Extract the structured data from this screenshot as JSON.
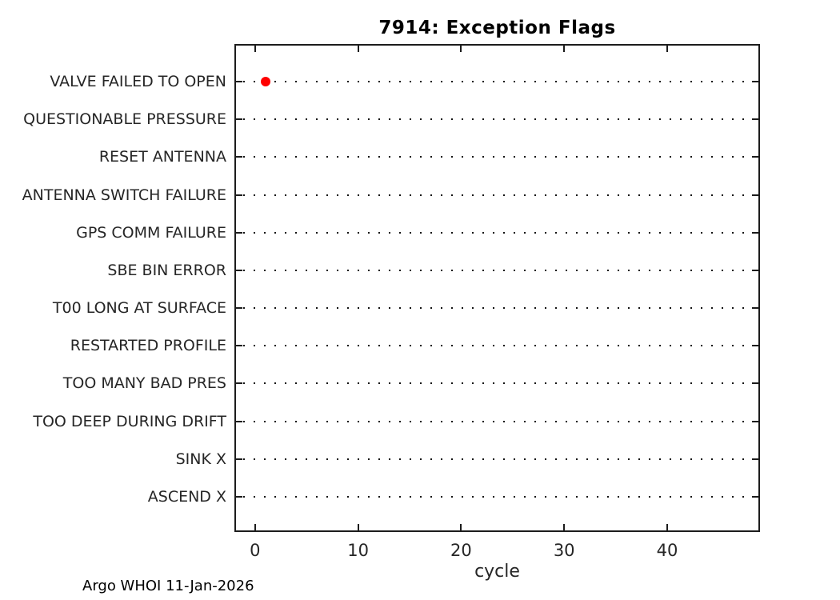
{
  "title": "7914: Exception Flags",
  "footer": "Argo WHOI 11-Jan-2026",
  "chart_data": {
    "type": "scatter",
    "title": "7914: Exception Flags",
    "xlabel": "cycle",
    "ylabel": "",
    "xlim": [
      -2,
      49
    ],
    "x_ticks": [
      0,
      10,
      20,
      30,
      40
    ],
    "x_tick_labels": [
      "0",
      "10",
      "20",
      "30",
      "40"
    ],
    "grid": "dotted horizontal line per category row",
    "legend": null,
    "categories": [
      "VALVE FAILED TO OPEN",
      "QUESTIONABLE PRESSURE",
      "RESET ANTENNA",
      "ANTENNA SWITCH FAILURE",
      "GPS COMM FAILURE",
      "SBE BIN ERROR",
      "T00 LONG AT SURFACE",
      "RESTARTED PROFILE",
      "TOO MANY BAD PRES",
      "TOO DEEP DURING DRIFT",
      "SINK X",
      "ASCEND X"
    ],
    "points": [
      {
        "category": "VALVE FAILED TO OPEN",
        "cycle": 1
      }
    ],
    "marker_color": "#ff0000",
    "axis_color": "#1c1c1c",
    "text_color": "#262626"
  }
}
